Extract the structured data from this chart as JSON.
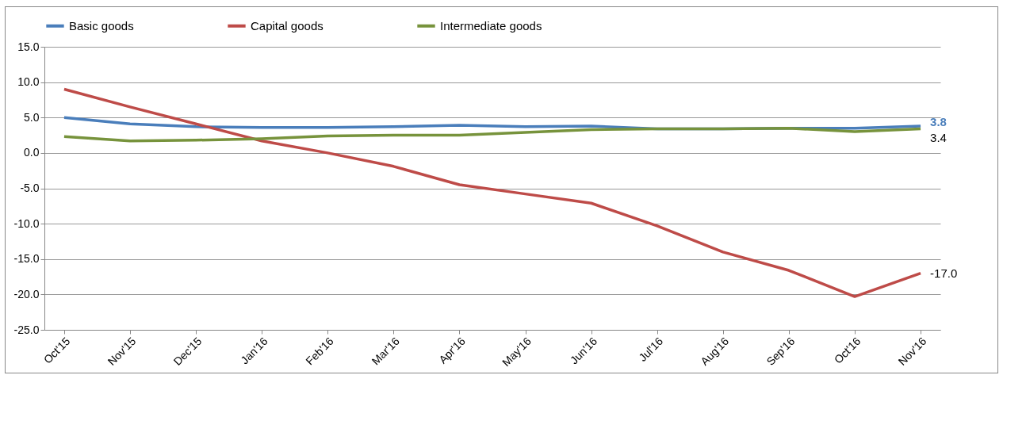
{
  "chart_data": {
    "type": "line",
    "categories": [
      "Oct'15",
      "Nov'15",
      "Dec'15",
      "Jan'16",
      "Feb'16",
      "Mar'16",
      "Apr'16",
      "May'16",
      "Jun'16",
      "Jul'16",
      "Aug'16",
      "Sep'16",
      "Oct'16",
      "Nov'16"
    ],
    "series": [
      {
        "name": "Basic goods",
        "color": "#4a7ebb",
        "values": [
          5.0,
          4.1,
          3.7,
          3.6,
          3.6,
          3.7,
          3.9,
          3.7,
          3.8,
          3.4,
          3.4,
          3.5,
          3.5,
          3.8
        ]
      },
      {
        "name": "Capital goods",
        "color": "#be4b48",
        "values": [
          9.0,
          6.5,
          4.1,
          1.7,
          0.0,
          -1.9,
          -4.5,
          -5.8,
          -7.1,
          -10.3,
          -14.0,
          -16.6,
          -20.3,
          -17.0
        ]
      },
      {
        "name": "Intermediate goods",
        "color": "#77933c",
        "values": [
          2.3,
          1.7,
          1.8,
          2.0,
          2.4,
          2.5,
          2.5,
          2.9,
          3.3,
          3.4,
          3.4,
          3.5,
          3.0,
          3.4
        ]
      }
    ],
    "ylim": [
      -25,
      15
    ],
    "yticks": [
      {
        "value": -25,
        "label": "-25.0"
      },
      {
        "value": -20,
        "label": "-20.0"
      },
      {
        "value": -15,
        "label": "-15.0"
      },
      {
        "value": -10,
        "label": "-10.0"
      },
      {
        "value": -5,
        "label": "-5.0"
      },
      {
        "value": 0,
        "label": "0.0"
      },
      {
        "value": 5,
        "label": "5.0"
      },
      {
        "value": 10,
        "label": "10.0"
      },
      {
        "value": 15,
        "label": "15.0"
      }
    ],
    "grid": "y",
    "legend": "top",
    "marker": "none",
    "line_style": "solid",
    "annotations": [
      {
        "text": "3.8",
        "x": "Nov'16",
        "y": 3.8
      },
      {
        "text": "3.4",
        "x": "Nov'16",
        "y": 3.4
      },
      {
        "text": "-17.0",
        "x": "Nov'16",
        "y": -17.0
      }
    ]
  }
}
